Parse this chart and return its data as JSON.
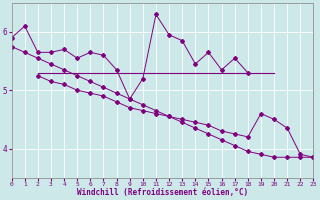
{
  "x_all": [
    0,
    1,
    2,
    3,
    4,
    5,
    6,
    7,
    8,
    9,
    10,
    11,
    12,
    13,
    14,
    15,
    16,
    17,
    18,
    19,
    20,
    21,
    22,
    23
  ],
  "line_upper_zigzag_x": [
    0,
    1,
    2,
    3,
    4,
    5,
    6,
    7,
    8,
    9,
    10,
    11,
    12,
    13,
    14,
    15,
    16,
    17,
    18
  ],
  "line_upper_zigzag_y": [
    5.9,
    6.1,
    5.65,
    5.65,
    5.7,
    5.55,
    5.65,
    5.6,
    5.35,
    4.85,
    5.2,
    6.3,
    5.95,
    5.85,
    5.45,
    5.65,
    5.35,
    5.55,
    5.3
  ],
  "line_flat_x": [
    2,
    3,
    4,
    5,
    6,
    7,
    8,
    9,
    10,
    11,
    12,
    13,
    14,
    15,
    16,
    17,
    18,
    19,
    20
  ],
  "line_flat_y": [
    5.3,
    5.3,
    5.3,
    5.3,
    5.3,
    5.3,
    5.3,
    5.3,
    5.3,
    5.3,
    5.3,
    5.3,
    5.3,
    5.3,
    5.3,
    5.3,
    5.3,
    5.3,
    5.3
  ],
  "line_long_descent_x": [
    0,
    1,
    2,
    3,
    4,
    5,
    6,
    7,
    8,
    9,
    10,
    11,
    12,
    13,
    14,
    15,
    16,
    17,
    18,
    19,
    20,
    21,
    22,
    23
  ],
  "line_long_descent_y": [
    5.75,
    5.65,
    5.55,
    5.45,
    5.35,
    5.25,
    5.15,
    5.05,
    4.95,
    4.85,
    4.75,
    4.65,
    4.55,
    4.45,
    4.35,
    4.25,
    4.15,
    4.05,
    3.95,
    3.9,
    3.85,
    3.85,
    3.85,
    3.85
  ],
  "line_short_descent_x": [
    2,
    3,
    4,
    5,
    6,
    7,
    8,
    9,
    10,
    11,
    12,
    13,
    14,
    15,
    16,
    17,
    18,
    19,
    20,
    21,
    22,
    23
  ],
  "line_short_descent_y": [
    5.25,
    5.15,
    5.1,
    5.0,
    4.95,
    4.9,
    4.8,
    4.7,
    4.65,
    4.6,
    4.55,
    4.5,
    4.45,
    4.4,
    4.3,
    4.25,
    4.2,
    4.6,
    4.5,
    4.35,
    3.9,
    3.85
  ],
  "color": "#800080",
  "bg_color": "#cce8e8",
  "grid_color": "#aacccc",
  "xlabel": "Windchill (Refroidissement éolien,°C)",
  "ylim": [
    3.5,
    6.5
  ],
  "xlim": [
    0,
    23
  ],
  "yticks": [
    4,
    5,
    6
  ],
  "xticks": [
    0,
    1,
    2,
    3,
    4,
    5,
    6,
    7,
    8,
    9,
    10,
    11,
    12,
    13,
    14,
    15,
    16,
    17,
    18,
    19,
    20,
    21,
    22,
    23
  ]
}
